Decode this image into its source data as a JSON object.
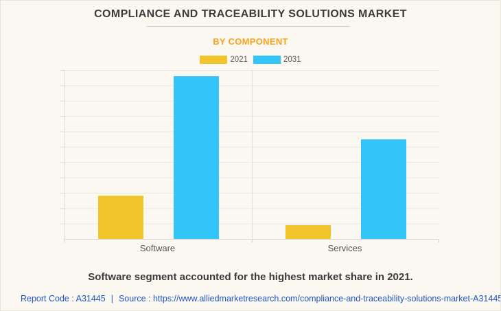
{
  "header": {
    "title": "COMPLIANCE AND TRACEABILITY SOLUTIONS MARKET",
    "subtitle": "BY COMPONENT"
  },
  "legend": [
    {
      "label": "2021",
      "color": "#F2C52D"
    },
    {
      "label": "2031",
      "color": "#33C5FA"
    }
  ],
  "chart_data": {
    "type": "bar",
    "title": "Compliance and Traceability Solutions Market by Component",
    "categories": [
      "Software",
      "Services"
    ],
    "series": [
      {
        "name": "2021",
        "color": "#F2C52D",
        "values": [
          2.8,
          0.9
        ]
      },
      {
        "name": "2031",
        "color": "#33C5FA",
        "values": [
          10.6,
          6.5
        ]
      }
    ],
    "xlabel": "",
    "ylabel": "",
    "ylim": [
      0,
      11
    ],
    "y_tick_labels_visible": false,
    "gridlines": "horizontal",
    "legend_position": "top"
  },
  "note": {
    "text": "Software segment accounted for the highest market share in 2021."
  },
  "footer": {
    "report_code": "Report Code : A31445",
    "separator": "|",
    "source": "Source : https://www.alliedmarketresearch.com/compliance-and-traceability-solutions-market-A31445"
  },
  "colors": {
    "background": "#FAF8F1",
    "title_text": "#3B3B3B",
    "subtitle_orange": "#F9A21D",
    "bar_yellow": "#F2C52D",
    "bar_blue": "#33C5FA",
    "footer_link_blue": "#2255C4",
    "gridline": "#EBE8E0"
  }
}
